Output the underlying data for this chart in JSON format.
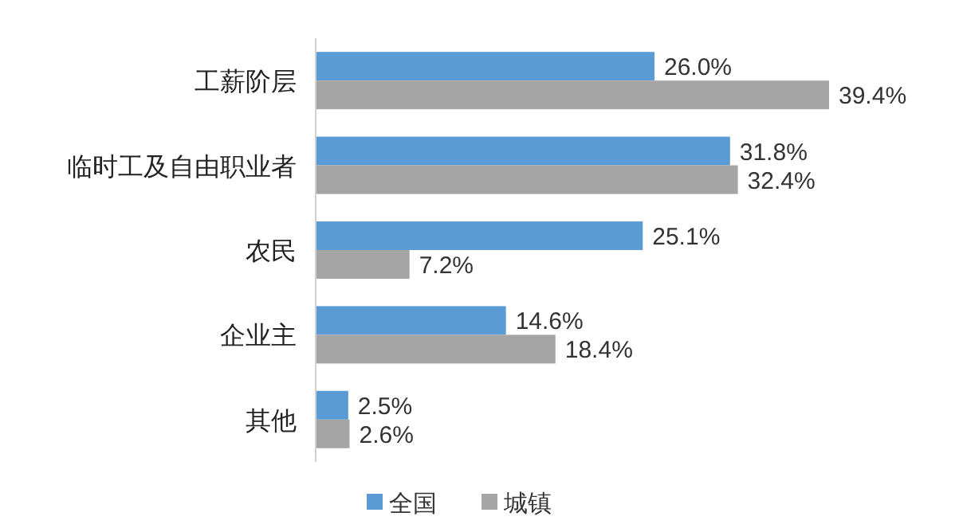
{
  "chart_data": {
    "type": "bar",
    "orientation": "horizontal",
    "legend": "bottom",
    "categories": [
      "工薪阶层",
      "临时工及自由职业者",
      "农民",
      "企业主",
      "其他"
    ],
    "series": [
      {
        "name": "全国",
        "color": "#5b9bd5",
        "values": [
          26.0,
          31.8,
          25.1,
          14.6,
          2.5
        ],
        "value_labels": [
          "26.0%",
          "31.8%",
          "25.1%",
          "14.6%",
          "2.5%"
        ]
      },
      {
        "name": "城镇",
        "color": "#a5a5a5",
        "values": [
          39.4,
          32.4,
          7.2,
          18.4,
          2.6
        ],
        "value_labels": [
          "39.4%",
          "32.4%",
          "7.2%",
          "18.4%",
          "2.6%"
        ]
      }
    ]
  }
}
